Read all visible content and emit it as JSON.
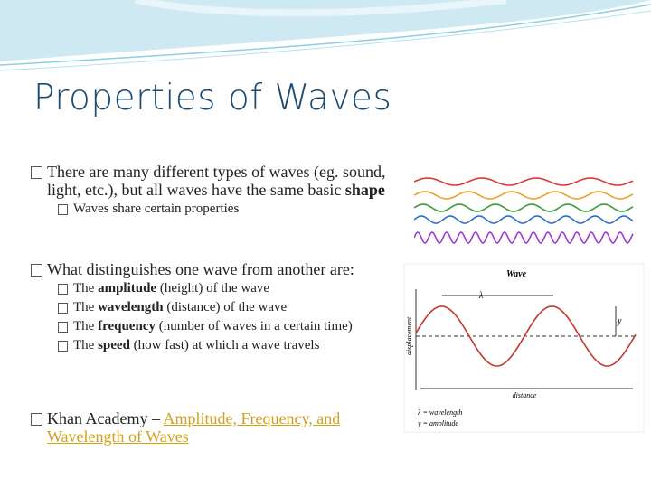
{
  "title": "Properties of Waves",
  "bullets": [
    {
      "segments": [
        {
          "text": "There are many different types of waves (eg. sound, light, etc.), but all waves have the same basic "
        },
        {
          "text": "shape",
          "bold": true
        }
      ],
      "subs": [
        {
          "segments": [
            {
              "text": "Waves share certain properties"
            }
          ]
        }
      ]
    },
    {
      "segments": [
        {
          "text": "What distinguishes one wave from another are:"
        }
      ],
      "subs": [
        {
          "segments": [
            {
              "text": "The "
            },
            {
              "text": "amplitude",
              "bold": true
            },
            {
              "text": " (height) of the wave"
            }
          ]
        },
        {
          "segments": [
            {
              "text": "The "
            },
            {
              "text": "wavelength",
              "bold": true
            },
            {
              "text": " (distance) of the wave"
            }
          ]
        },
        {
          "segments": [
            {
              "text": "The "
            },
            {
              "text": "frequency",
              "bold": true
            },
            {
              "text": " (number of waves in a certain time)"
            }
          ]
        },
        {
          "segments": [
            {
              "text": "The "
            },
            {
              "text": "speed",
              "bold": true
            },
            {
              "text": " (how fast) at which a wave travels"
            }
          ]
        }
      ]
    },
    {
      "segments": [
        {
          "text": "Khan Academy – "
        },
        {
          "text": "Amplitude, Frequency, and Wavelength of Waves",
          "link": true
        }
      ],
      "subs": []
    }
  ],
  "figure": {
    "title": "Wave",
    "lambda": "λ",
    "y": "y",
    "y_axis": "displacement",
    "x_axis": "distance",
    "legend": [
      "λ = wavelength",
      "y = amplitude"
    ]
  }
}
